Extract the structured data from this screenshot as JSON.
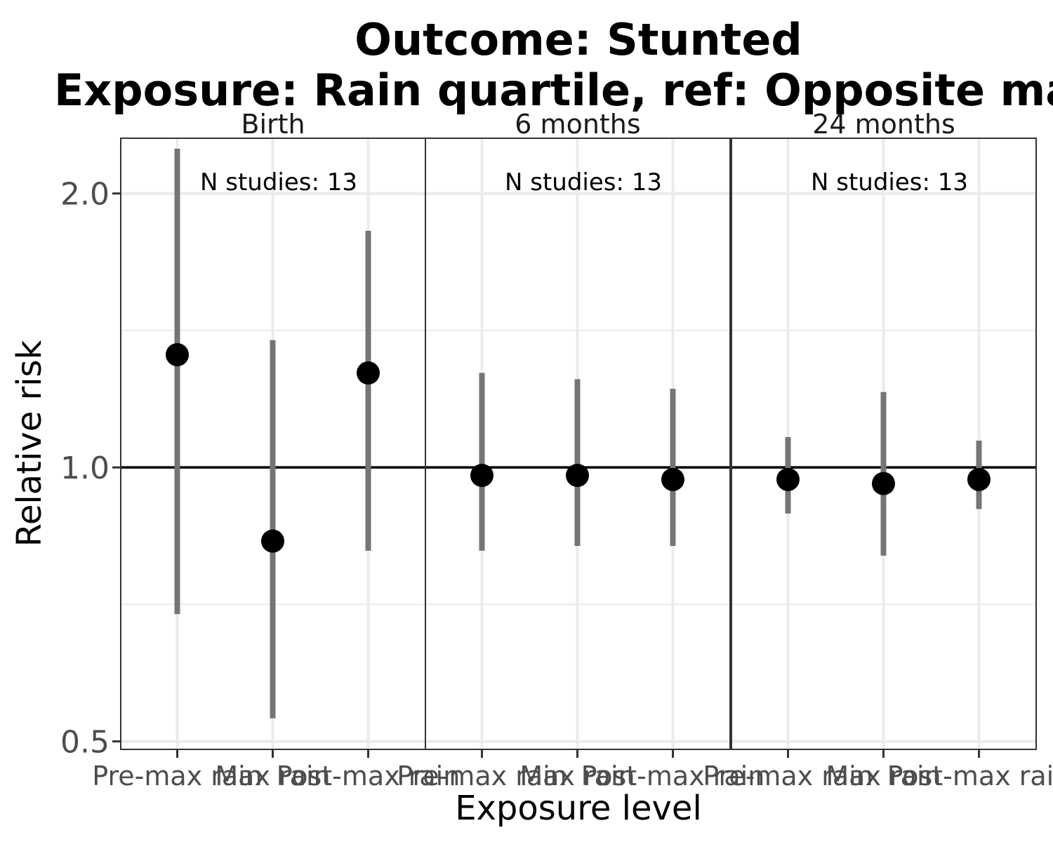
{
  "chart_data": {
    "type": "scatter",
    "title": "Outcome: Stunted",
    "subtitle": "Exposure: Rain quartile, ref: Opposite max",
    "xlabel": "Exposure level",
    "ylabel": "Relative risk",
    "y_scale": "log",
    "ylim": [
      0.49,
      2.3
    ],
    "y_ticks": [
      0.5,
      1.0,
      2.0
    ],
    "y_tick_labels": [
      "0.5",
      "1.0",
      "2.0"
    ],
    "reference_line": 1.0,
    "grid": true,
    "categories": [
      "Pre-max rain",
      "Max rain",
      "Post-max rain"
    ],
    "panels": [
      {
        "name": "Birth",
        "annotation": "N studies: 13",
        "points": [
          {
            "category": "Pre-max rain",
            "rr": 1.33,
            "lower": 0.69,
            "upper": 2.24
          },
          {
            "category": "Max rain",
            "rr": 0.83,
            "lower": 0.53,
            "upper": 1.38
          },
          {
            "category": "Post-max rain",
            "rr": 1.27,
            "lower": 0.81,
            "upper": 1.82
          }
        ]
      },
      {
        "name": "6 months",
        "annotation": "N studies: 13",
        "points": [
          {
            "category": "Pre-max rain",
            "rr": 0.98,
            "lower": 0.81,
            "upper": 1.27
          },
          {
            "category": "Max rain",
            "rr": 0.98,
            "lower": 0.82,
            "upper": 1.25
          },
          {
            "category": "Post-max rain",
            "rr": 0.97,
            "lower": 0.82,
            "upper": 1.22
          }
        ]
      },
      {
        "name": "24 months",
        "annotation": "N studies: 13",
        "points": [
          {
            "category": "Pre-max rain",
            "rr": 0.97,
            "lower": 0.89,
            "upper": 1.08
          },
          {
            "category": "Max rain",
            "rr": 0.96,
            "lower": 0.8,
            "upper": 1.21
          },
          {
            "category": "Post-max rain",
            "rr": 0.97,
            "lower": 0.9,
            "upper": 1.07
          }
        ]
      }
    ]
  }
}
